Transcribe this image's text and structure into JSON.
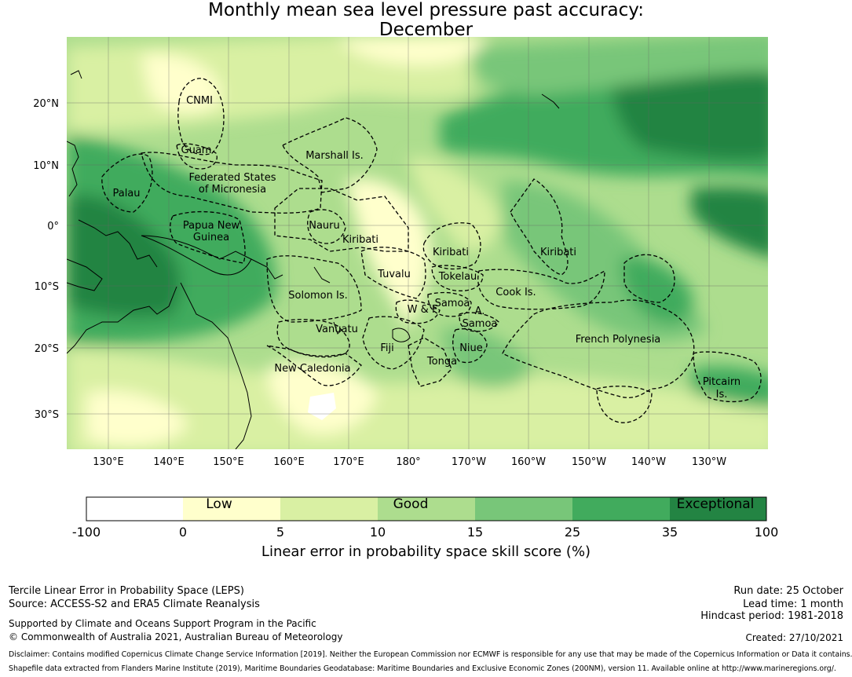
{
  "title": {
    "line1": "Monthly mean sea level pressure past accuracy:",
    "line2": "December"
  },
  "map": {
    "lat_ticks": [
      "20°N",
      "10°N",
      "0°",
      "10°S",
      "20°S",
      "30°S"
    ],
    "lon_ticks": [
      "130°E",
      "140°E",
      "150°E",
      "160°E",
      "170°E",
      "180°",
      "170°W",
      "160°W",
      "150°W",
      "140°W",
      "130°W"
    ],
    "regions": [
      {
        "name": "CNMI"
      },
      {
        "name": "Guam"
      },
      {
        "name": "Marshall Is."
      },
      {
        "name": "Federated States"
      },
      {
        "name": "of Micronesia"
      },
      {
        "name": "Palau"
      },
      {
        "name": "Papua New"
      },
      {
        "name": "Guinea"
      },
      {
        "name": "Nauru"
      },
      {
        "name": "Kiribati"
      },
      {
        "name": "Kiribati"
      },
      {
        "name": "Kiribati"
      },
      {
        "name": "Tuvalu"
      },
      {
        "name": "Tokelau"
      },
      {
        "name": "Solomon Is."
      },
      {
        "name": "Samoa"
      },
      {
        "name": "A."
      },
      {
        "name": "Samoa"
      },
      {
        "name": "W & F"
      },
      {
        "name": "Cook Is."
      },
      {
        "name": "Vanuatu"
      },
      {
        "name": "Fiji"
      },
      {
        "name": "Niue"
      },
      {
        "name": "Tonga"
      },
      {
        "name": "French Polynesia"
      },
      {
        "name": "New Caledonia"
      },
      {
        "name": "Pitcairn"
      },
      {
        "name": "Is."
      }
    ]
  },
  "colorbar": {
    "ticks": [
      "-100",
      "0",
      "5",
      "10",
      "15",
      "25",
      "35",
      "100"
    ],
    "category_labels": [
      "Low",
      "Good",
      "Exceptional"
    ],
    "colors": [
      "#ffffff",
      "#ffffcc",
      "#d9f0a3",
      "#addd8e",
      "#78c679",
      "#41ab5d",
      "#238443"
    ],
    "title": "Linear error in probability space skill score (%)"
  },
  "footer": {
    "left1": "Tercile Linear Error in Probability Space (LEPS)",
    "left2": "Source: ACCESS-S2 and ERA5 Climate Reanalysis",
    "left3": "Supported by Climate and Oceans Support Program in the Pacific",
    "left4": "© Commonwealth of Australia 2021, Australian Bureau of Meteorology",
    "right1": "Run date: 25 October",
    "right2": "Lead time: 1 month",
    "right3": "Hindcast period: 1981-2018",
    "right4": "Created: 27/10/2021",
    "disclaimer": "Disclaimer: Contains modified Copernicus Climate Change Service Information [2019]. Neither the European Commission nor ECMWF is responsible for any use that may be made of the Copernicus Information or Data it contains.",
    "shapefile": "Shapefile data extracted from Flanders Marine Institute (2019), Maritime Boundaries Geodatabase: Maritime Boundaries and Exclusive Economic Zones (200NM), version 11. Available online at http://www.marineregions.org/."
  }
}
